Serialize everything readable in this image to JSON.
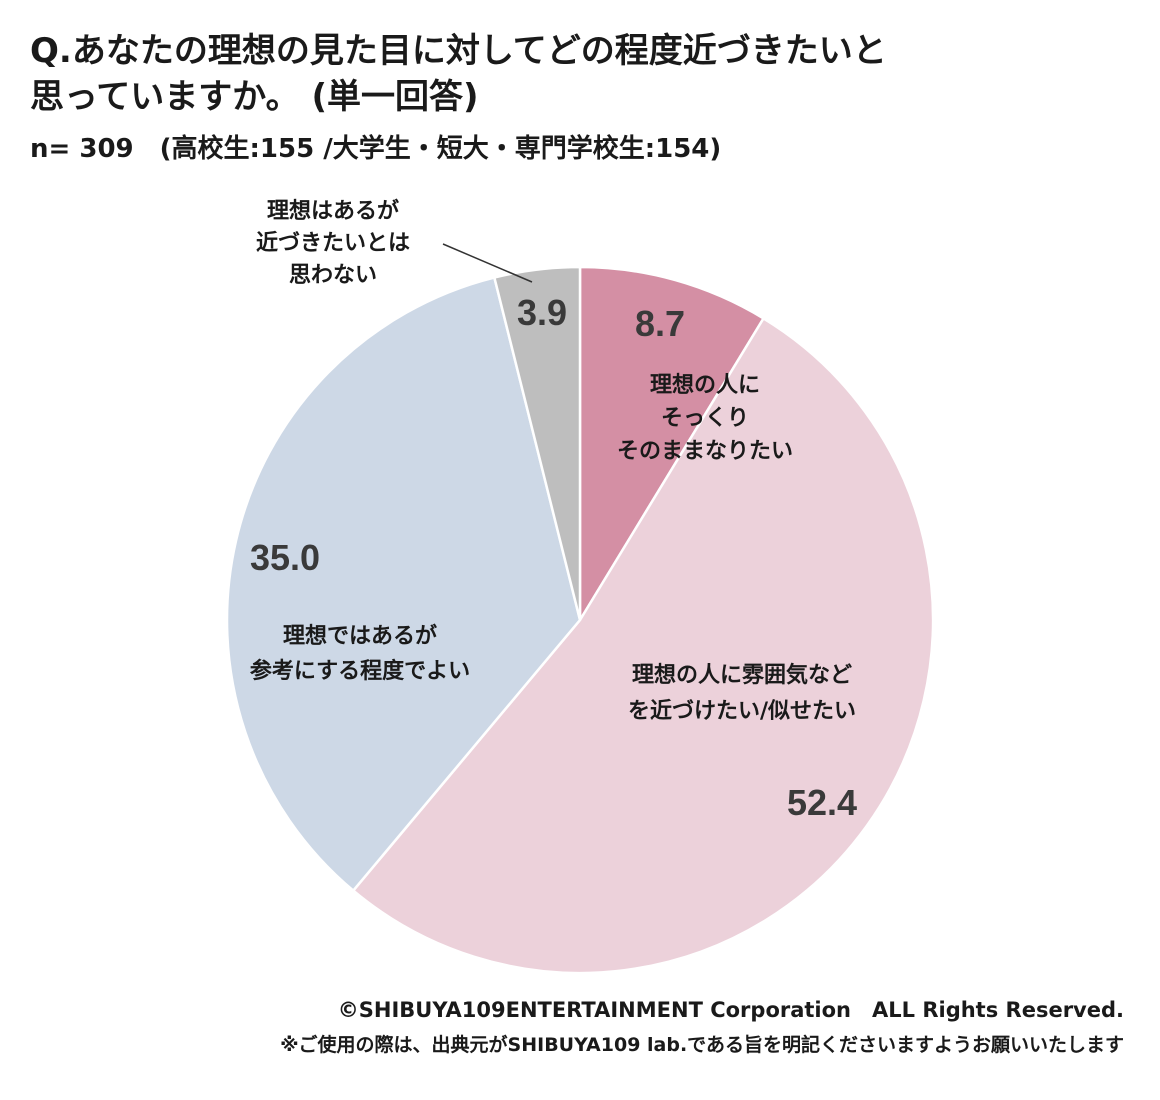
{
  "title": {
    "line1": "Q.あなたの理想の見た目に対してどの程度近づきたいと",
    "line2": "思っていますか。 (単一回答)"
  },
  "sample": "n= 309　(高校生:155 /大学生・短大・専門学校生:154)",
  "chart_data": {
    "type": "pie",
    "start": "12 o'clock, clockwise",
    "slices": [
      {
        "label_lines": [
          "理想の人に",
          "そっくり",
          "そのままなりたい"
        ],
        "value": 8.7,
        "color": "#d48fa4"
      },
      {
        "label_lines": [
          "理想の人に雰囲気など",
          "を近づけたい/似せたい"
        ],
        "value": 52.4,
        "color": "#ecd1da"
      },
      {
        "label_lines": [
          "理想ではあるが",
          "参考にする程度でよい"
        ],
        "value": 35.0,
        "color": "#cdd8e6"
      },
      {
        "label_lines": [
          "理想はあるが",
          "近づきたいとは",
          "思わない"
        ],
        "value": 3.9,
        "color": "#bebebe"
      }
    ],
    "value_labels": [
      "8.7",
      "52.4",
      "35.0",
      "3.9"
    ]
  },
  "footer": {
    "copyright": "©SHIBUYA109ENTERTAINMENT Corporation　ALL Rights Reserved.",
    "note": "※ご使用の際は、出典元がSHIBUYA109 lab.である旨を明記くださいますようお願いいたします"
  }
}
